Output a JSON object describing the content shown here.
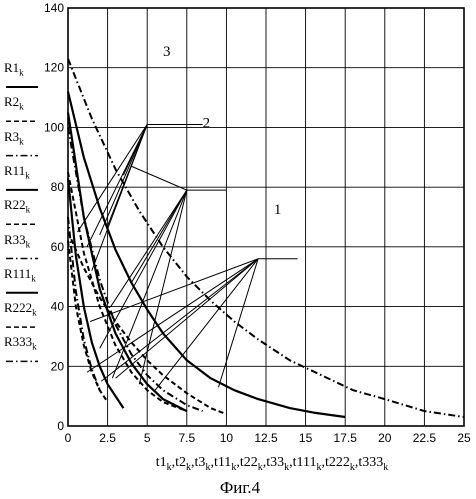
{
  "chart_data": {
    "type": "line",
    "xlim": [
      0,
      25
    ],
    "ylim": [
      0,
      140
    ],
    "x_ticks": [
      0,
      2.5,
      5,
      7.5,
      10,
      12.5,
      15,
      17.5,
      20,
      22.5,
      25
    ],
    "x_tick_labels": [
      "0",
      "2.5",
      "5",
      "7.5",
      "10",
      "12.5",
      "15",
      "17.5",
      "20",
      "22.5",
      "25"
    ],
    "y_ticks": [
      0,
      20,
      40,
      60,
      80,
      100,
      120,
      140
    ],
    "y_tick_labels": [
      "0",
      "20",
      "40",
      "60",
      "80",
      "100",
      "120",
      "140"
    ],
    "xlabel": "t1k, t2k, t3k, t11k, t22k, t33k, t111k, t222k, t333k",
    "caption": "Фиг.4",
    "legend": [
      {
        "base": "R1",
        "sub": "k",
        "style": "solid"
      },
      {
        "base": "R2",
        "sub": "k",
        "style": "dash"
      },
      {
        "base": "R3",
        "sub": "k",
        "style": "dashdot"
      },
      {
        "base": "R11",
        "sub": "k",
        "style": "solid"
      },
      {
        "base": "R22",
        "sub": "k",
        "style": "dash"
      },
      {
        "base": "R33",
        "sub": "k",
        "style": "dashdot"
      },
      {
        "base": "R111",
        "sub": "k",
        "style": "solid"
      },
      {
        "base": "R222",
        "sub": "k",
        "style": "dash"
      },
      {
        "base": "R333",
        "sub": "k",
        "style": "dashdot"
      }
    ],
    "series": [
      {
        "name": "R1k",
        "style": "solid",
        "x": [
          0,
          0.5,
          1,
          1.5,
          2,
          2.5,
          3.5
        ],
        "y": [
          83,
          57,
          40,
          28,
          20,
          14,
          6
        ]
      },
      {
        "name": "R2k",
        "style": "dash",
        "x": [
          0,
          0.5,
          1,
          1.5,
          2,
          2.5
        ],
        "y": [
          62,
          40,
          27,
          18,
          12,
          8
        ]
      },
      {
        "name": "R3k",
        "style": "dashdot",
        "x": [
          0,
          0.5,
          1,
          1.5,
          2
        ],
        "y": [
          70,
          45,
          29,
          19,
          12
        ]
      },
      {
        "name": "R11k",
        "style": "solid",
        "x": [
          0,
          1,
          2,
          3,
          4,
          5,
          6,
          7.5
        ],
        "y": [
          105,
          70,
          46,
          31,
          21,
          14,
          9,
          5
        ]
      },
      {
        "name": "R22k",
        "style": "dash",
        "x": [
          0,
          1,
          2,
          3,
          4,
          5,
          6,
          7.5
        ],
        "y": [
          85,
          58,
          40,
          27,
          18,
          12,
          8,
          5
        ]
      },
      {
        "name": "R33k",
        "style": "dashdot",
        "x": [
          0,
          1,
          2,
          3,
          4,
          5,
          6,
          7.5,
          8.5
        ],
        "y": [
          100,
          70,
          49,
          34,
          24,
          17,
          12,
          7,
          5
        ]
      },
      {
        "name": "R111k",
        "style": "solid",
        "x": [
          0,
          1,
          2,
          3,
          4,
          5,
          6,
          7.5,
          9,
          10.5,
          12,
          14,
          15.5,
          17.5
        ],
        "y": [
          112,
          90,
          73,
          59,
          48,
          39,
          31,
          22,
          16,
          12,
          9,
          6,
          4.5,
          3
        ]
      },
      {
        "name": "R222k",
        "style": "dash",
        "x": [
          0,
          1,
          2,
          3,
          4,
          5,
          6,
          7.5,
          9,
          10
        ],
        "y": [
          65,
          53,
          43,
          35,
          28,
          22,
          17,
          11,
          6,
          4
        ]
      },
      {
        "name": "R333k",
        "style": "dashdot",
        "x": [
          0,
          1.5,
          3,
          4.5,
          6,
          7.5,
          9,
          10.5,
          12,
          14,
          16,
          18,
          20,
          22.5,
          25
        ],
        "y": [
          123,
          103,
          86,
          72,
          60,
          50,
          42,
          35,
          29,
          22,
          17,
          12,
          9,
          5,
          3
        ]
      }
    ],
    "annotations": [
      {
        "label": "1",
        "label_pos": [
          13,
          71
        ],
        "hub": [
          12,
          56
        ],
        "shelf_end": [
          14.5,
          56
        ],
        "targets": [
          [
            9.5,
            13
          ],
          [
            5.5,
            12
          ],
          [
            3,
            16
          ],
          [
            2.1,
            15
          ],
          [
            1.2,
            18
          ],
          [
            1.4,
            35
          ]
        ]
      },
      {
        "label": "2",
        "label_pos": [
          8.5,
          100
        ],
        "hub": [
          7.5,
          79
        ],
        "shelf_end": [
          10,
          79
        ],
        "targets": [
          [
            4.5,
            14
          ],
          [
            2.8,
            16
          ],
          [
            2,
            26
          ],
          [
            2.7,
            40
          ],
          [
            4,
            48
          ],
          [
            4,
            87
          ]
        ]
      },
      {
        "label": "3",
        "label_pos": [
          6,
          124
        ],
        "hub": [
          5,
          101
        ],
        "shelf_end": [
          8.5,
          101
        ],
        "targets": [
          [
            0.6,
            65
          ],
          [
            1.2,
            60
          ],
          [
            1.5,
            52
          ],
          [
            2,
            64
          ],
          [
            3.5,
            84
          ],
          [
            2.5,
            67
          ]
        ]
      }
    ]
  }
}
